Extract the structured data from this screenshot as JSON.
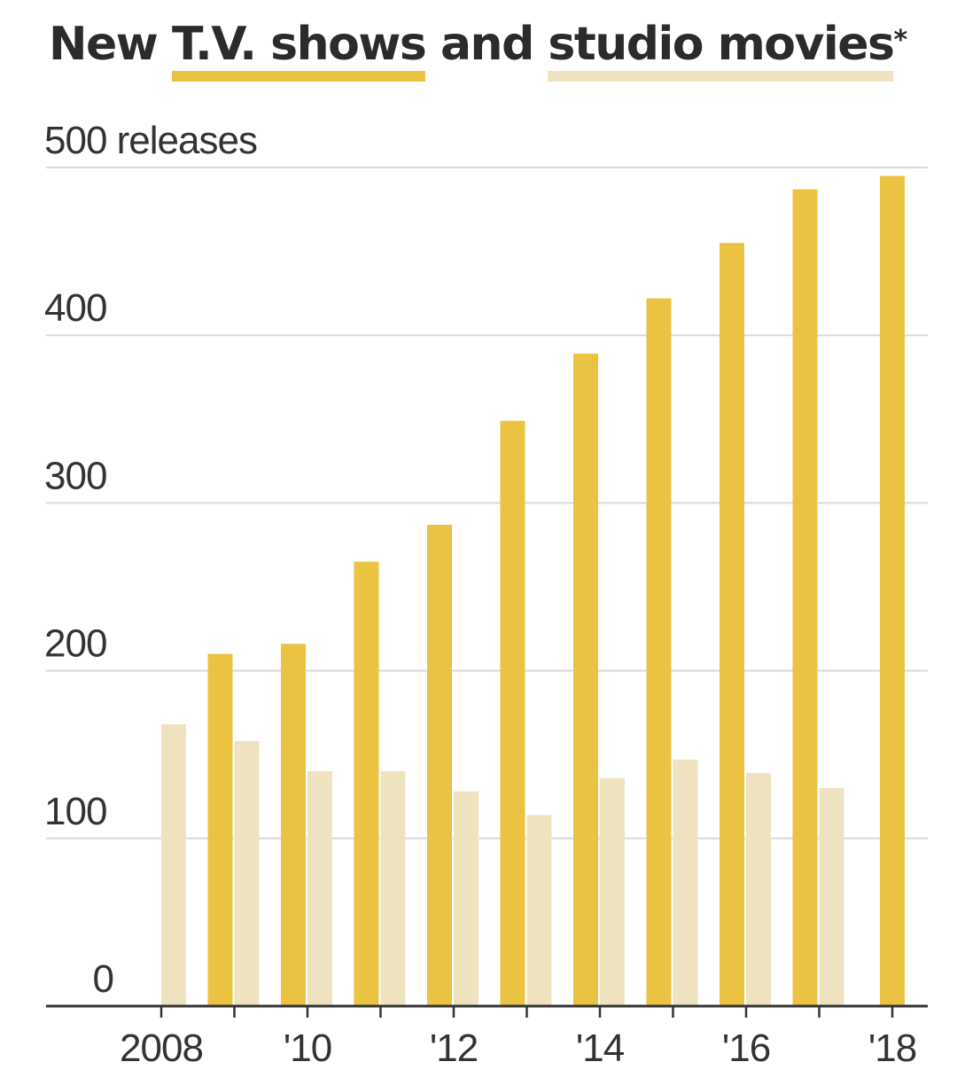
{
  "title": {
    "prefix": "New ",
    "tv_words": "T.V. shows",
    "middle": " and ",
    "movie_words": "studio movies",
    "asterisk": "*"
  },
  "colors": {
    "tv": "#e9c341",
    "movies": "#efe3bf",
    "grid": "#d9d9de",
    "axis": "#333333",
    "text": "#2b2b2b"
  },
  "chart_data": {
    "type": "bar",
    "title": "New T.V. shows and studio movies*",
    "ylabel": "releases",
    "ylim": [
      0,
      500
    ],
    "yticks": [
      0,
      100,
      200,
      300,
      400,
      500
    ],
    "ytick_labels": [
      "0",
      "100",
      "200",
      "300",
      "400",
      "500"
    ],
    "y_unit_label": "releases",
    "categories": [
      "2008",
      "2009",
      "2010",
      "2011",
      "2012",
      "2013",
      "2014",
      "2015",
      "2016",
      "2017",
      "2018"
    ],
    "xtick_labels": [
      "2008",
      "",
      "'10",
      "",
      "'12",
      "",
      "'14",
      "",
      "'16",
      "",
      "'18"
    ],
    "grid": true,
    "series": [
      {
        "name": "T.V. shows",
        "values": [
          null,
          210,
          216,
          265,
          287,
          349,
          389,
          422,
          455,
          487,
          495
        ]
      },
      {
        "name": "studio movies",
        "values": [
          168,
          158,
          140,
          140,
          128,
          114,
          136,
          147,
          139,
          130,
          null
        ]
      }
    ]
  }
}
